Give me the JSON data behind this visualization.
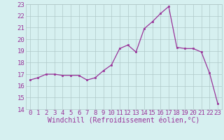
{
  "x": [
    0,
    1,
    2,
    3,
    4,
    5,
    6,
    7,
    8,
    9,
    10,
    11,
    12,
    13,
    14,
    15,
    16,
    17,
    18,
    19,
    20,
    21,
    22,
    23
  ],
  "y": [
    16.5,
    16.7,
    17.0,
    17.0,
    16.9,
    16.9,
    16.9,
    16.5,
    16.7,
    17.3,
    17.8,
    19.2,
    19.5,
    18.9,
    20.9,
    21.5,
    22.2,
    22.8,
    19.3,
    19.2,
    19.2,
    18.9,
    17.1,
    14.5
  ],
  "line_color": "#993399",
  "marker_color": "#993399",
  "bg_color": "#d6f0f0",
  "grid_color": "#b0c8c8",
  "xlabel": "Windchill (Refroidissement éolien,°C)",
  "xlim": [
    -0.5,
    23.5
  ],
  "ylim": [
    14,
    23
  ],
  "yticks": [
    14,
    15,
    16,
    17,
    18,
    19,
    20,
    21,
    22,
    23
  ],
  "xticks": [
    0,
    1,
    2,
    3,
    4,
    5,
    6,
    7,
    8,
    9,
    10,
    11,
    12,
    13,
    14,
    15,
    16,
    17,
    18,
    19,
    20,
    21,
    22,
    23
  ],
  "font_color": "#993399",
  "font_size": 6.5,
  "xlabel_size": 7.0
}
